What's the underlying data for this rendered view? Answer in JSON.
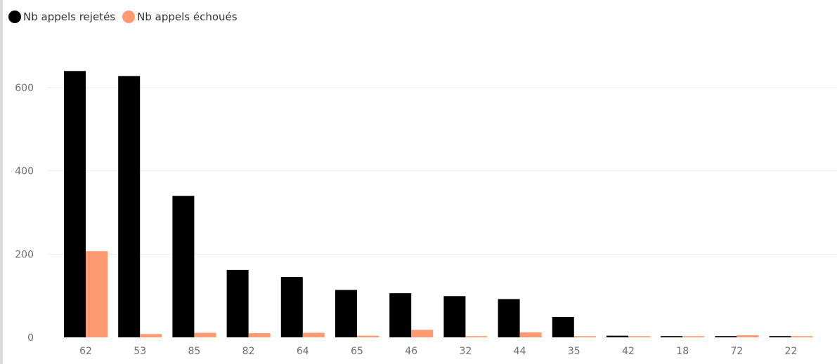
{
  "legend": {
    "series1": "Nb appels rejetés",
    "series2": "Nb appels échoués"
  },
  "colors": {
    "series1": "#000000",
    "series2": "#fd9a72",
    "grid": "#ebebeb",
    "tick": "#6f6f6f"
  },
  "chart_data": {
    "type": "bar",
    "categories": [
      "62",
      "53",
      "85",
      "82",
      "64",
      "65",
      "46",
      "32",
      "44",
      "35",
      "42",
      "18",
      "72",
      "22"
    ],
    "series": [
      {
        "name": "Nb appels rejetés",
        "values": [
          640,
          628,
          340,
          162,
          145,
          114,
          106,
          99,
          92,
          49,
          4,
          3,
          3,
          3
        ]
      },
      {
        "name": "Nb appels échoués",
        "values": [
          207,
          8,
          11,
          10,
          11,
          4,
          18,
          3,
          12,
          3,
          3,
          3,
          5,
          3
        ]
      }
    ],
    "yticks": [
      0,
      200,
      400,
      600
    ],
    "ylim": [
      0,
      700
    ],
    "grid": true,
    "legend_position": "top-left"
  }
}
